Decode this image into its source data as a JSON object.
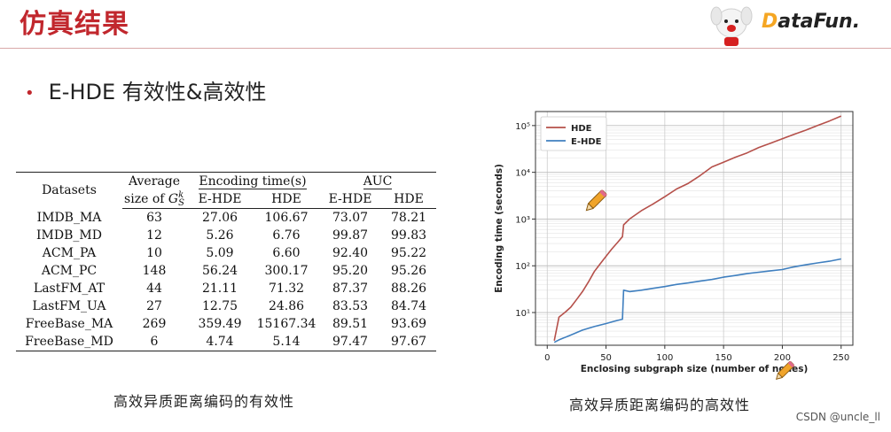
{
  "slide": {
    "title": "仿真结果",
    "bullet": "E-HDE 有效性&高效性"
  },
  "logo": {
    "prefix": "D",
    "text": "ataFun."
  },
  "colors": {
    "title_red": "#c1272d",
    "hde": "#b5504a",
    "ehde": "#3f7fbf"
  },
  "table": {
    "header_row1": {
      "datasets": "Datasets",
      "average": "Average",
      "encoding_time": "Encoding time(s)",
      "auc": "AUC"
    },
    "header_row2": {
      "size_of": "size of",
      "g": "G",
      "sup": "k",
      "sub": "S",
      "enc_ehde": "E-HDE",
      "enc_hde": "HDE",
      "auc_ehde": "E-HDE",
      "auc_hde": "HDE"
    },
    "rows": [
      {
        "dataset": "IMDB_MA",
        "avg": "63",
        "enc_ehde": "27.06",
        "enc_hde": "106.67",
        "auc_ehde": "73.07",
        "auc_hde": "78.21"
      },
      {
        "dataset": "IMDB_MD",
        "avg": "12",
        "enc_ehde": "5.26",
        "enc_hde": "6.76",
        "auc_ehde": "99.87",
        "auc_hde": "99.83"
      },
      {
        "dataset": "ACM_PA",
        "avg": "10",
        "enc_ehde": "5.09",
        "enc_hde": "6.60",
        "auc_ehde": "92.40",
        "auc_hde": "95.22"
      },
      {
        "dataset": "ACM_PC",
        "avg": "148",
        "enc_ehde": "56.24",
        "enc_hde": "300.17",
        "auc_ehde": "95.20",
        "auc_hde": "95.26"
      },
      {
        "dataset": "LastFM_AT",
        "avg": "44",
        "enc_ehde": "21.11",
        "enc_hde": "71.32",
        "auc_ehde": "87.37",
        "auc_hde": "88.26"
      },
      {
        "dataset": "LastFM_UA",
        "avg": "27",
        "enc_ehde": "12.75",
        "enc_hde": "24.86",
        "auc_ehde": "83.53",
        "auc_hde": "84.74"
      },
      {
        "dataset": "FreeBase_MA",
        "avg": "269",
        "enc_ehde": "359.49",
        "enc_hde": "15167.34",
        "auc_ehde": "89.51",
        "auc_hde": "93.69"
      },
      {
        "dataset": "FreeBase_MD",
        "avg": "6",
        "enc_ehde": "4.74",
        "enc_hde": "5.14",
        "auc_ehde": "97.47",
        "auc_hde": "97.67"
      }
    ],
    "caption": "高效异质距离编码的有效性"
  },
  "chart_caption": "高效异质距离编码的高效性",
  "watermark": "CSDN @uncle_ll",
  "icons": [
    "pencil-icon",
    "pencil-icon"
  ],
  "chart_data": {
    "type": "line",
    "title": "",
    "xlabel": "Enclosing subgraph size (number of nodes)",
    "ylabel": "Encoding time (seconds)",
    "xlim": [
      -10,
      260
    ],
    "ylim": [
      2,
      200000
    ],
    "yscale": "log",
    "grid": true,
    "legend_position": "top-left",
    "x_ticks": [
      "0",
      "50",
      "100",
      "150",
      "200",
      "250"
    ],
    "y_ticks": [
      "10¹",
      "10²",
      "10³",
      "10⁴",
      "10⁵"
    ],
    "series": [
      {
        "name": "HDE",
        "color": "#b5504a",
        "x": [
          6,
          10,
          15,
          20,
          25,
          30,
          35,
          40,
          45,
          50,
          55,
          60,
          64,
          65,
          70,
          80,
          90,
          100,
          110,
          120,
          130,
          140,
          150,
          160,
          170,
          180,
          190,
          200,
          210,
          220,
          230,
          240,
          250
        ],
        "y": [
          2.5,
          8,
          10,
          13,
          19,
          28,
          45,
          75,
          110,
          160,
          230,
          320,
          420,
          750,
          1000,
          1500,
          2100,
          3000,
          4400,
          5800,
          8500,
          13000,
          16500,
          21000,
          26000,
          34000,
          42000,
          52000,
          65000,
          80000,
          100000,
          125000,
          160000
        ]
      },
      {
        "name": "E-HDE",
        "color": "#3f7fbf",
        "x": [
          6,
          10,
          20,
          30,
          40,
          50,
          55,
          60,
          64,
          65,
          70,
          80,
          90,
          100,
          110,
          120,
          130,
          140,
          150,
          160,
          170,
          180,
          190,
          200,
          210,
          220,
          230,
          240,
          250
        ],
        "y": [
          2.3,
          2.6,
          3.3,
          4.2,
          5,
          5.8,
          6.3,
          6.8,
          7.2,
          30,
          28,
          30,
          33,
          36,
          40,
          43,
          47,
          51,
          57,
          62,
          68,
          73,
          78,
          83,
          95,
          105,
          115,
          125,
          140
        ]
      }
    ]
  }
}
